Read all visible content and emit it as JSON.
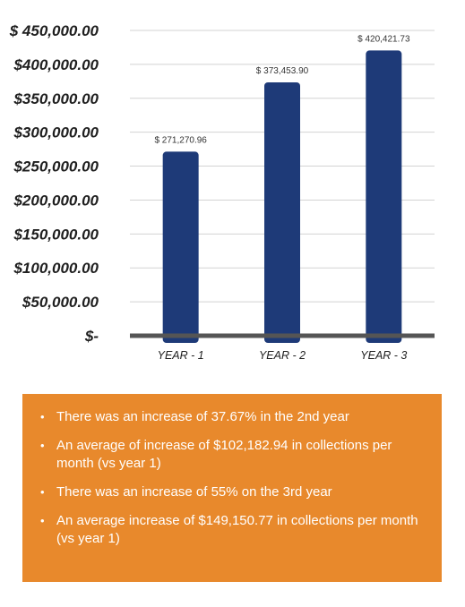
{
  "chart_data": {
    "type": "bar",
    "categories": [
      "YEAR - 1",
      "YEAR - 2",
      "YEAR - 3"
    ],
    "values": [
      271270.96,
      373453.9,
      420421.73
    ],
    "data_labels": [
      "$ 271,270.96",
      "$ 373,453.90",
      "$ 420,421.73"
    ],
    "y_tick_values": [
      0,
      50000,
      100000,
      150000,
      200000,
      250000,
      300000,
      350000,
      400000,
      450000
    ],
    "y_tick_labels": [
      "$-",
      "$50,000.00",
      "$100,000.00",
      "$150,000.00",
      "$200,000.00",
      "$250,000.00",
      "$300,000.00",
      "$350,000.00",
      "$400,000.00",
      "$ 450,000.00"
    ],
    "ylim": [
      0,
      450000
    ],
    "grid": true,
    "bar_color": "#1e3a78",
    "axis_color": "#555555"
  },
  "notes": {
    "background": "#e8892c",
    "bullet": "•",
    "items": [
      "There was an increase of 37.67% in the 2nd year",
      "An average of increase of $102,182.94 in collections per month (vs year 1)",
      "There was an increase of 55% on the 3rd year",
      "An average increase of $149,150.77 in collections per month (vs year 1)"
    ]
  }
}
